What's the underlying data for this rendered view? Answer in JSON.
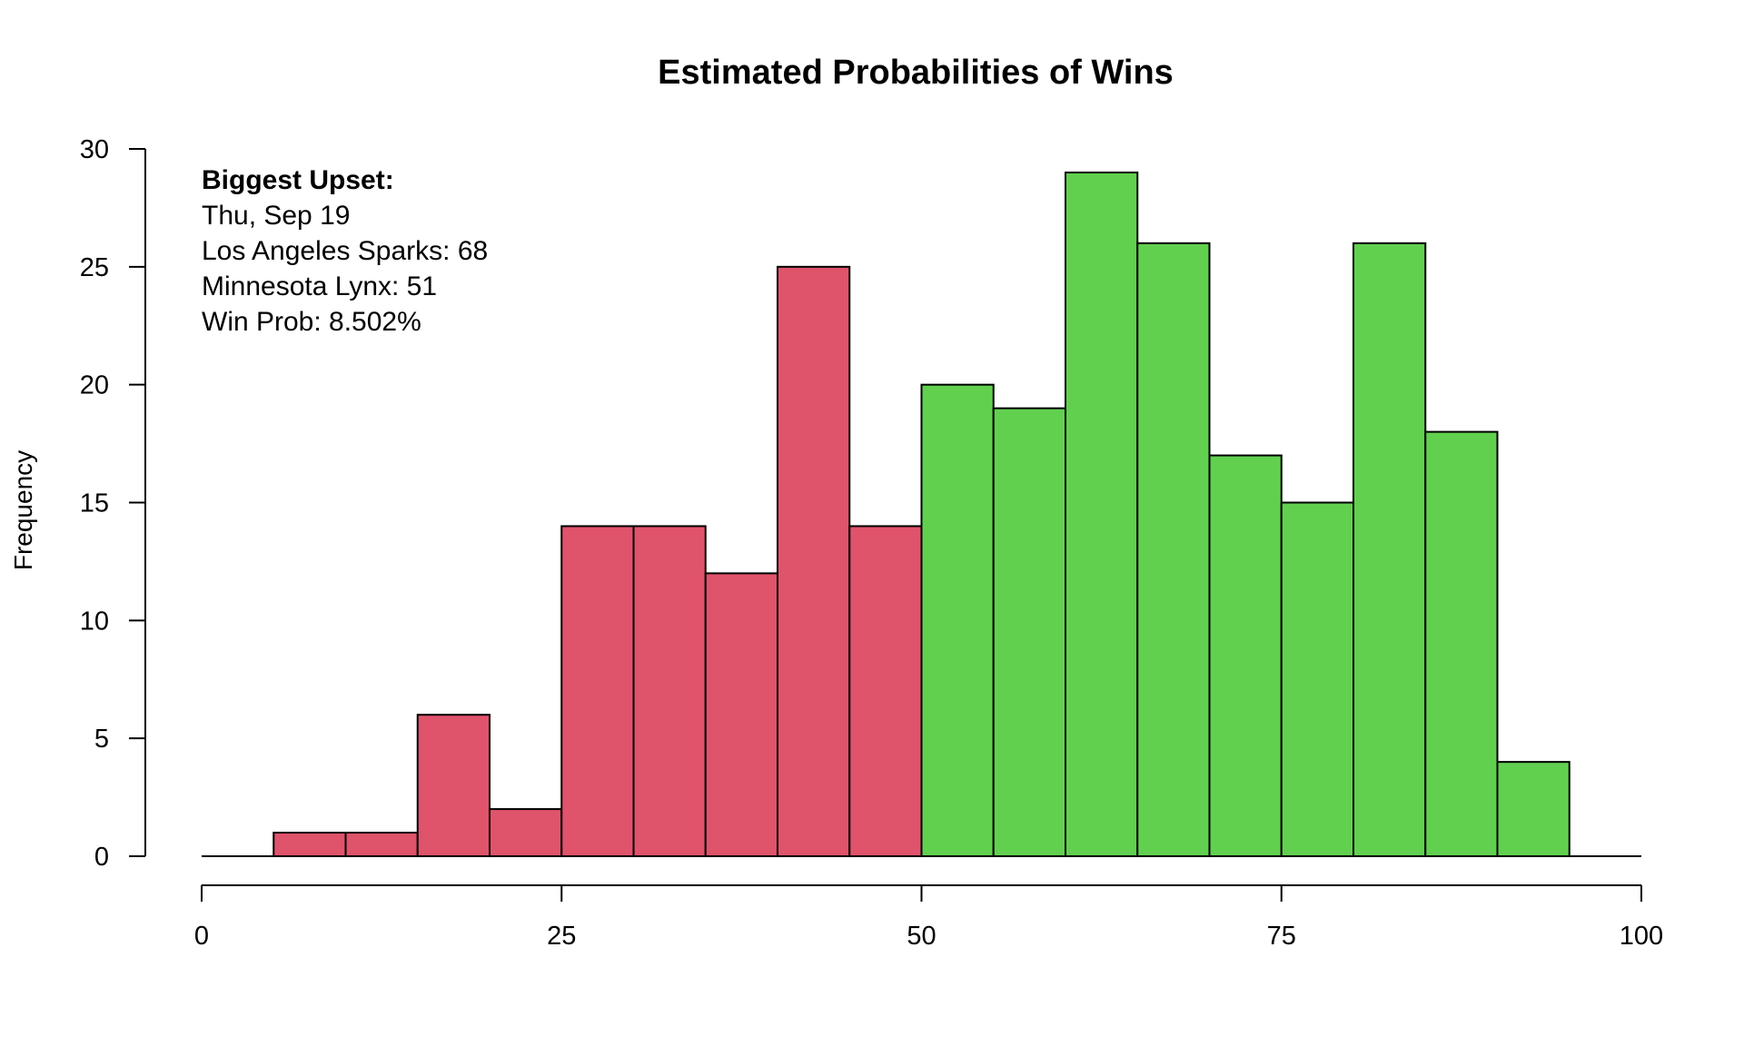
{
  "chart_data": {
    "type": "bar",
    "title": "Estimated Probabilities of Wins",
    "xlabel": "",
    "ylabel": "Frequency",
    "xlim": [
      0,
      100
    ],
    "ylim": [
      0,
      30
    ],
    "x_ticks": [
      "0",
      "25",
      "50",
      "75",
      "100"
    ],
    "y_ticks": [
      "0",
      "5",
      "10",
      "15",
      "20",
      "25",
      "30"
    ],
    "bin_width": 5,
    "bins": [
      {
        "from": 0,
        "to": 5,
        "count": 0
      },
      {
        "from": 5,
        "to": 10,
        "count": 1
      },
      {
        "from": 10,
        "to": 15,
        "count": 1
      },
      {
        "from": 15,
        "to": 20,
        "count": 6
      },
      {
        "from": 20,
        "to": 25,
        "count": 2
      },
      {
        "from": 25,
        "to": 30,
        "count": 14
      },
      {
        "from": 30,
        "to": 35,
        "count": 14
      },
      {
        "from": 35,
        "to": 40,
        "count": 12
      },
      {
        "from": 40,
        "to": 45,
        "count": 25
      },
      {
        "from": 45,
        "to": 50,
        "count": 14
      },
      {
        "from": 50,
        "to": 55,
        "count": 20
      },
      {
        "from": 55,
        "to": 60,
        "count": 19
      },
      {
        "from": 60,
        "to": 65,
        "count": 29
      },
      {
        "from": 65,
        "to": 70,
        "count": 26
      },
      {
        "from": 70,
        "to": 75,
        "count": 17
      },
      {
        "from": 75,
        "to": 80,
        "count": 15
      },
      {
        "from": 80,
        "to": 85,
        "count": 26
      },
      {
        "from": 85,
        "to": 90,
        "count": 18
      },
      {
        "from": 90,
        "to": 95,
        "count": 4
      },
      {
        "from": 95,
        "to": 100,
        "count": 0
      }
    ],
    "colors": {
      "below_50": "#DF536B",
      "at_or_above_50": "#61D04F",
      "outline": "#000000"
    },
    "grid": false,
    "legend": "none",
    "annotation": {
      "title": "Biggest Upset:",
      "lines": [
        "Thu, Sep 19",
        "Los Angeles Sparks: 68",
        "Minnesota Lynx: 51",
        "Win Prob: 8.502%"
      ]
    }
  }
}
